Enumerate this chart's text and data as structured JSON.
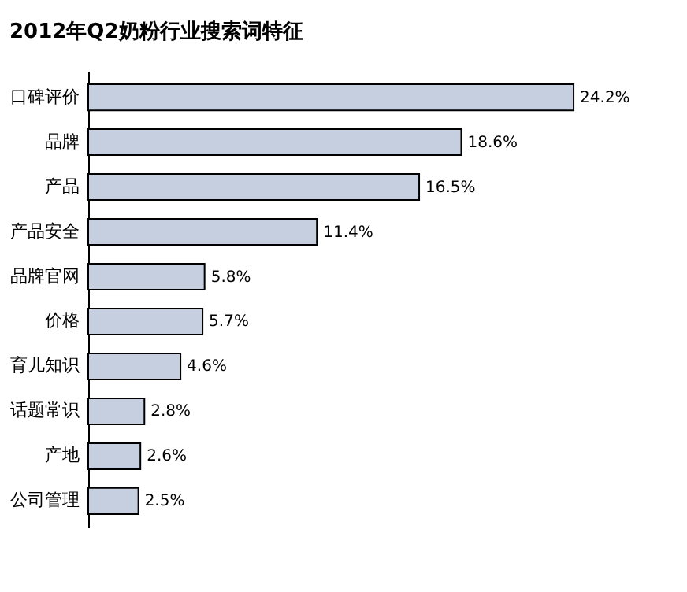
{
  "chart_data": {
    "type": "bar",
    "orientation": "horizontal",
    "title": "2012年Q2奶粉行业搜索词特征",
    "categories": [
      "口碑评价",
      "品牌",
      "产品",
      "产品安全",
      "品牌官网",
      "价格",
      "育儿知识",
      "话题常识",
      "产地",
      "公司管理"
    ],
    "values": [
      24.2,
      18.6,
      16.5,
      11.4,
      5.8,
      5.7,
      4.6,
      2.8,
      2.6,
      2.5
    ],
    "value_labels": [
      "24.2%",
      "18.6%",
      "16.5%",
      "11.4%",
      "5.8%",
      "5.7%",
      "4.6%",
      "2.8%",
      "2.6%",
      "2.5%"
    ],
    "color": "#c5cfe0"
  }
}
